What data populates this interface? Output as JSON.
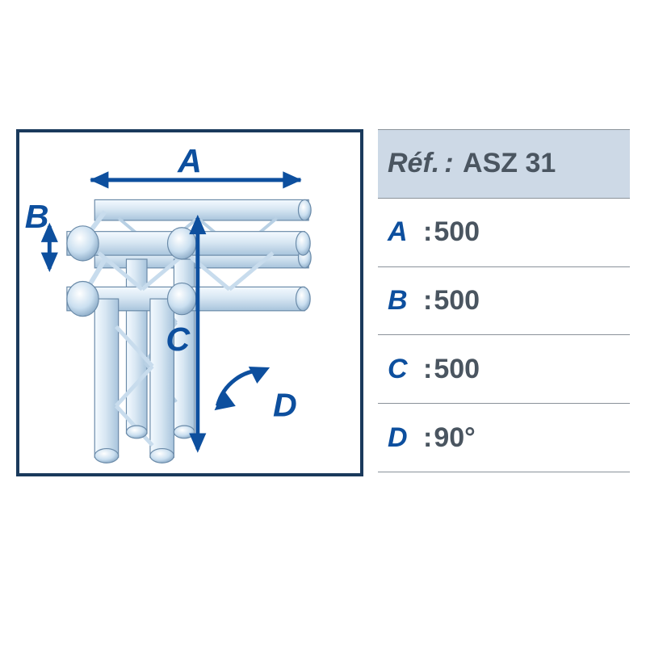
{
  "colors": {
    "border": "#1a3a5c",
    "accent": "#0d4f9e",
    "text": "#4a5560",
    "row_border": "#8a929a",
    "header_bg": "#cdd9e6",
    "truss_light": "#eaf3fb",
    "truss_mid": "#c3d6e8",
    "truss_dark": "#96b4d0",
    "truss_stroke": "#5a7fa3"
  },
  "reference": {
    "label": "Réf.",
    "value": "ASZ 31"
  },
  "specs": [
    {
      "key": "A",
      "value": "500"
    },
    {
      "key": "B",
      "value": "500"
    },
    {
      "key": "C",
      "value": "500"
    },
    {
      "key": "D",
      "value": "90°"
    }
  ],
  "dimension_labels": {
    "A": "A",
    "B": "B",
    "C": "C",
    "D": "D"
  },
  "diagram": {
    "label_fontsize": 42,
    "label_color": "#0d4f9e",
    "arrow_color": "#0d4f9e",
    "arrow_stroke": 5
  }
}
